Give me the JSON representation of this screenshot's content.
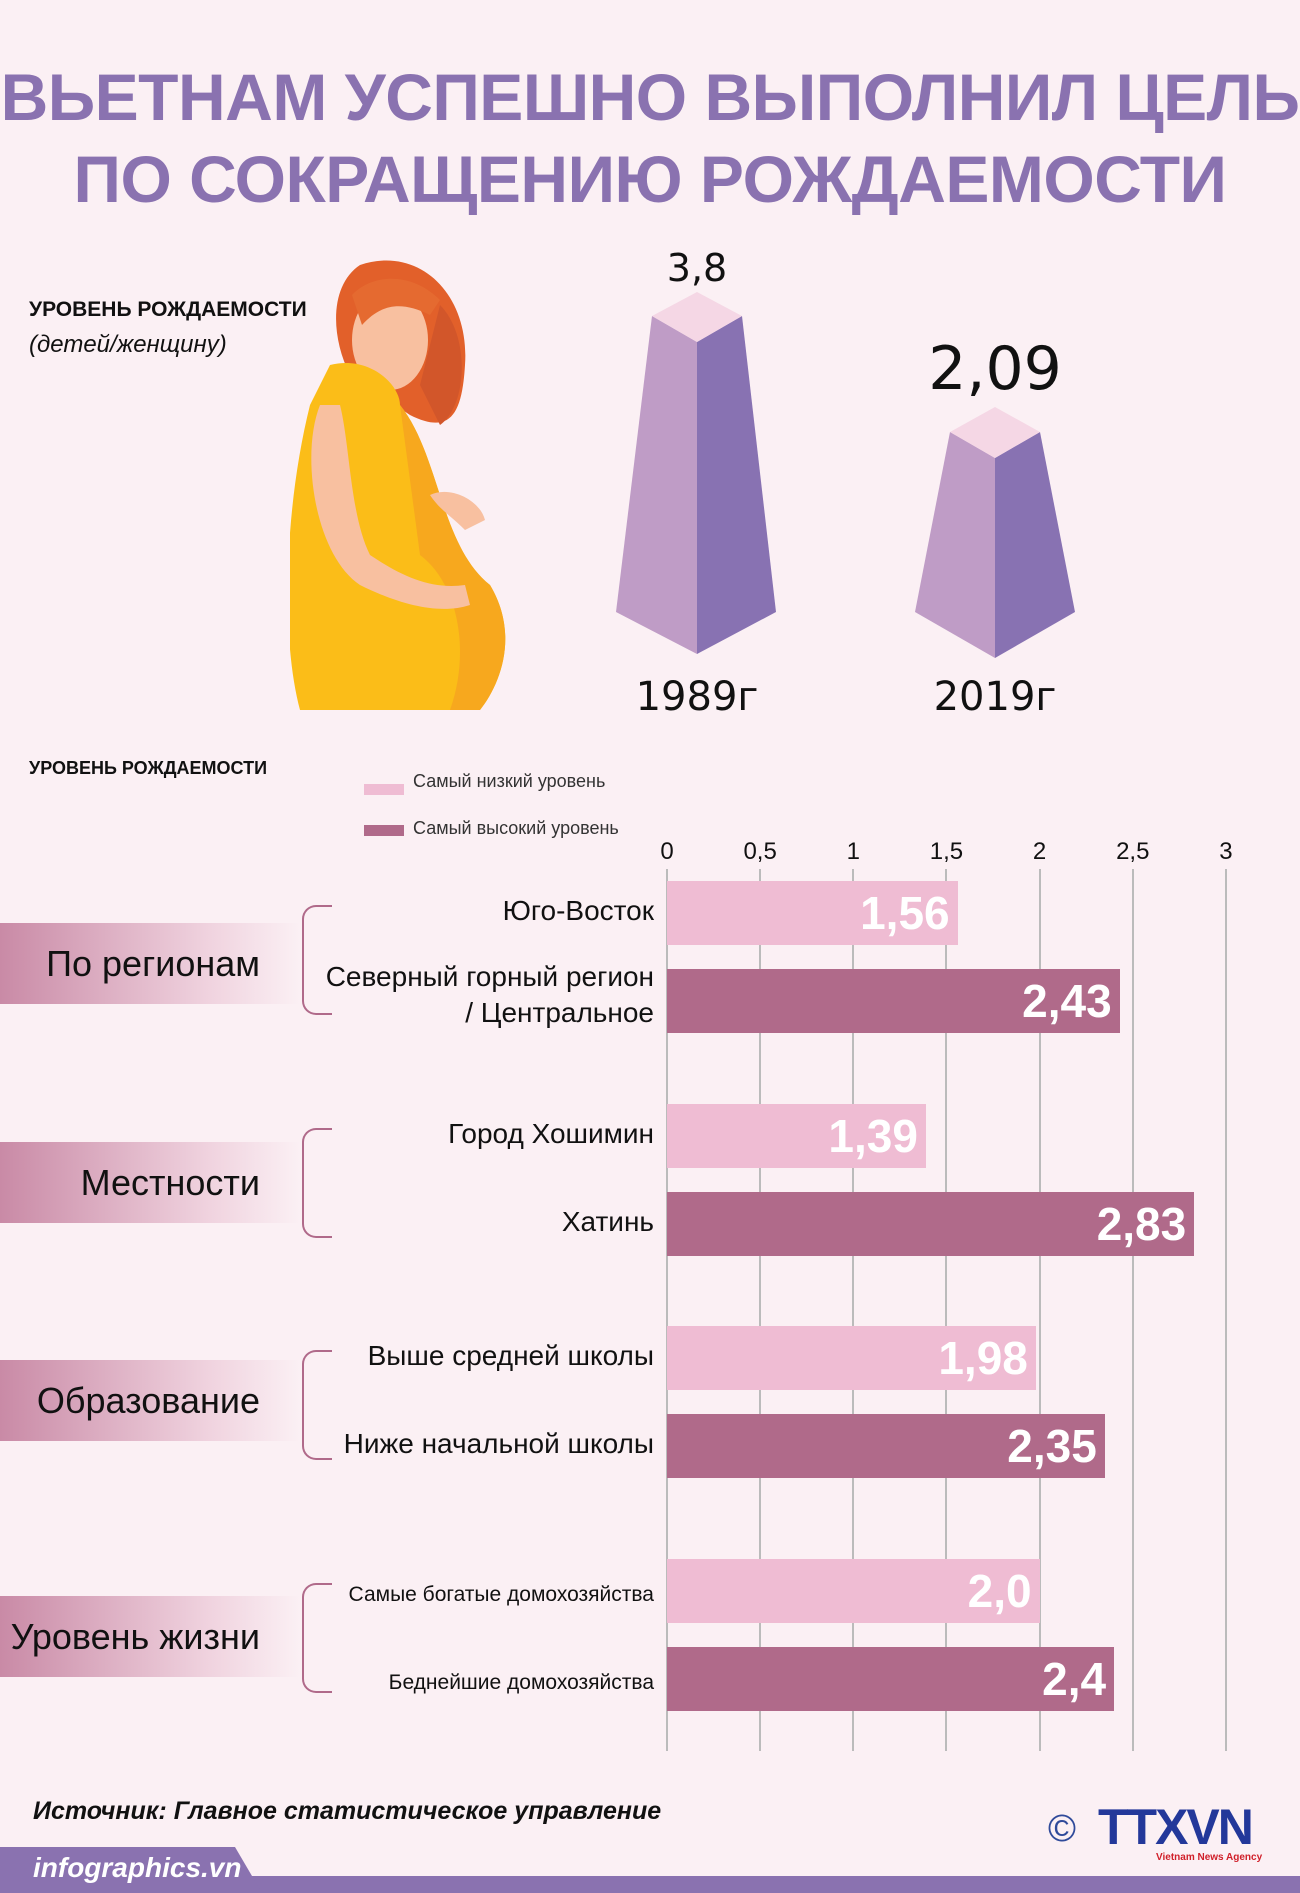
{
  "title": {
    "line1": "ВЬЕТНАМ УСПЕШНО ВЫПОЛНИЛ ЦЕЛЬ",
    "line2": "ПО СОКРАЩЕНИЮ РОЖДАЕМОСТИ"
  },
  "top": {
    "heading": "УРОВЕНЬ РОЖДАЕМОСТИ",
    "unit": "(детей/женщину)",
    "pillars": [
      {
        "year": "1989г",
        "value": "3,8"
      },
      {
        "year": "2019г",
        "value": "2,09"
      }
    ]
  },
  "colors": {
    "title": "#8a72b0",
    "low": "#efbcd3",
    "high": "#b06a8a",
    "pillar_left": "#bf9cc6",
    "pillar_right": "#8872b2",
    "pillar_top": "#f5d7e5",
    "background": "#fbf0f4"
  },
  "chart_data": {
    "type": "bar",
    "orientation": "horizontal",
    "title": "УРОВЕНЬ РОЖДАЕМОСТИ",
    "xlim": [
      0,
      3
    ],
    "ticks": [
      "0",
      "0,5",
      "1",
      "1,5",
      "2",
      "2,5",
      "3"
    ],
    "grid": true,
    "legend": "top",
    "series_names": [
      "Самый низкий уровень",
      "Самый высокий уровень"
    ],
    "groups": [
      {
        "name": "По регионам",
        "items": [
          {
            "label": "Юго-Восток",
            "value": 1.56,
            "text": "1,56",
            "series": 0
          },
          {
            "label": "Северный горный регион / Центральное",
            "value": 2.43,
            "text": "2,43",
            "series": 1
          }
        ]
      },
      {
        "name": "Местности",
        "items": [
          {
            "label": "Город Хошимин",
            "value": 1.39,
            "text": "1,39",
            "series": 0
          },
          {
            "label": "Хатинь",
            "value": 2.83,
            "text": "2,83",
            "series": 1
          }
        ]
      },
      {
        "name": "Образование",
        "items": [
          {
            "label": "Выше средней школы",
            "value": 1.98,
            "text": "1,98",
            "series": 0
          },
          {
            "label": "Ниже начальной школы",
            "value": 2.35,
            "text": "2,35",
            "series": 1
          }
        ]
      },
      {
        "name": "Уровень жизни",
        "items": [
          {
            "label": "Самые богатые домохозяйства",
            "value": 2.0,
            "text": "2,0",
            "series": 0
          },
          {
            "label": "Беднейшие домохозяйства",
            "value": 2.4,
            "text": "2,4",
            "series": 1
          }
        ]
      }
    ]
  },
  "footer": {
    "source": "Источник: Главное статистическое управление",
    "site": "infographics.vn",
    "copyright": "©",
    "logo": "TTXVN",
    "agency": "Vietnam News Agency"
  }
}
